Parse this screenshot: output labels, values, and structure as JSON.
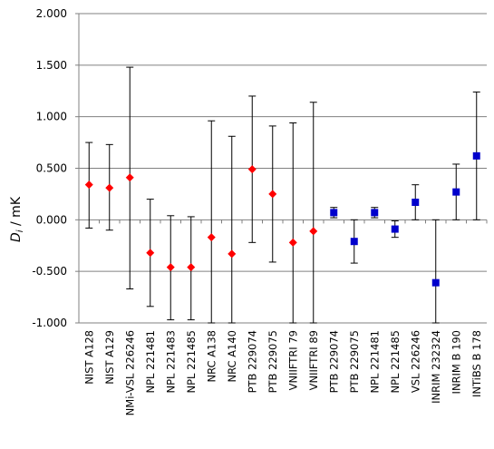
{
  "chart_data": {
    "type": "scatter",
    "title": "",
    "ylabel": "D_i / mK",
    "ylabel_main": "D",
    "ylabel_sub": "i",
    "ylabel_unit": " / mK",
    "ylim": [
      -1.0,
      2.0
    ],
    "yticks": [
      -1.0,
      -0.5,
      0.0,
      0.5,
      1.0,
      1.5,
      2.0
    ],
    "ytick_labels": [
      "-1.000",
      "-0.500",
      "0.000",
      "0.500",
      "1.000",
      "1.500",
      "2.000"
    ],
    "grid": "horizontal",
    "categories": [
      "NIST A128",
      "NIST A129",
      "NMi-VSL 226246",
      "NPL 221481",
      "NPL 221483",
      "NPL 221485",
      "NRC A138",
      "NRC A140",
      "PTB 229074",
      "PTB 229075",
      "VNIIFTRI 79",
      "VNIIFTRI 89",
      "PTB 229074",
      "PTB 229075",
      "NPL 221481",
      "NPL 221485",
      "VSL 226246",
      "INRIM 232324",
      "INRIM B 190",
      "INTiBS B 178"
    ],
    "series": [
      {
        "marker": "diamond",
        "color": "#ff0000",
        "points": [
          {
            "index": 0,
            "y": 0.34,
            "err_lo": -0.08,
            "err_hi": 0.75
          },
          {
            "index": 1,
            "y": 0.31,
            "err_lo": -0.1,
            "err_hi": 0.73
          },
          {
            "index": 2,
            "y": 0.41,
            "err_lo": -0.67,
            "err_hi": 1.48
          },
          {
            "index": 3,
            "y": -0.32,
            "err_lo": -0.84,
            "err_hi": 0.2
          },
          {
            "index": 4,
            "y": -0.46,
            "err_lo": -0.97,
            "err_hi": 0.04
          },
          {
            "index": 5,
            "y": -0.46,
            "err_lo": -0.97,
            "err_hi": 0.03
          },
          {
            "index": 6,
            "y": -0.17,
            "err_lo": -1.0,
            "err_hi": 0.96
          },
          {
            "index": 7,
            "y": -0.33,
            "err_lo": -1.0,
            "err_hi": 0.81
          },
          {
            "index": 8,
            "y": 0.49,
            "err_lo": -0.22,
            "err_hi": 1.2
          },
          {
            "index": 9,
            "y": 0.25,
            "err_lo": -0.41,
            "err_hi": 0.91
          },
          {
            "index": 10,
            "y": -0.22,
            "err_lo": -1.0,
            "err_hi": 0.94
          },
          {
            "index": 11,
            "y": -0.11,
            "err_lo": -1.0,
            "err_hi": 1.14
          }
        ]
      },
      {
        "marker": "square",
        "color": "#0000cc",
        "points": [
          {
            "index": 12,
            "y": 0.07,
            "err_lo": 0.02,
            "err_hi": 0.12
          },
          {
            "index": 13,
            "y": -0.21,
            "err_lo": -0.42,
            "err_hi": 0.0
          },
          {
            "index": 14,
            "y": 0.07,
            "err_lo": 0.02,
            "err_hi": 0.12
          },
          {
            "index": 15,
            "y": -0.09,
            "err_lo": -0.17,
            "err_hi": -0.01
          },
          {
            "index": 16,
            "y": 0.17,
            "err_lo": 0.0,
            "err_hi": 0.34
          },
          {
            "index": 17,
            "y": -0.61,
            "err_lo": -1.0,
            "err_hi": 0.0
          },
          {
            "index": 18,
            "y": 0.27,
            "err_lo": 0.0,
            "err_hi": 0.54
          },
          {
            "index": 19,
            "y": 0.62,
            "err_lo": 0.0,
            "err_hi": 1.24
          }
        ]
      }
    ]
  }
}
